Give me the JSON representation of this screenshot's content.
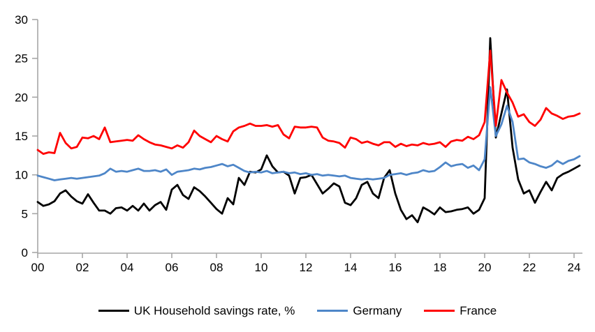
{
  "chart_data": {
    "type": "line",
    "title": "",
    "frequency": "quarterly",
    "x_range": [
      "2000Q1",
      "2024Q2"
    ],
    "x_axis": {
      "tick_labels": [
        "00",
        "02",
        "04",
        "06",
        "08",
        "10",
        "12",
        "14",
        "16",
        "18",
        "20",
        "22",
        "24"
      ],
      "tick_years": [
        2000,
        2002,
        2004,
        2006,
        2008,
        2010,
        2012,
        2014,
        2016,
        2018,
        2020,
        2022,
        2024
      ]
    },
    "y_axis": {
      "ticks": [
        0,
        5,
        10,
        15,
        20,
        25,
        30
      ],
      "range": [
        0,
        30
      ]
    },
    "grid": false,
    "legend_position": "bottom",
    "axis_color": "#A6A6A6",
    "series": [
      {
        "id": "uk",
        "name": "UK Household savings rate, %",
        "color": "#000000",
        "values": [
          6.5,
          6.0,
          6.2,
          6.6,
          7.6,
          8.0,
          7.2,
          6.6,
          6.3,
          7.5,
          6.4,
          5.4,
          5.4,
          5.0,
          5.7,
          5.8,
          5.4,
          6.0,
          5.4,
          6.3,
          5.4,
          6.1,
          6.5,
          5.5,
          8.1,
          8.7,
          7.4,
          6.9,
          8.4,
          7.9,
          7.2,
          6.4,
          5.6,
          5.0,
          7.0,
          6.2,
          9.6,
          8.7,
          10.4,
          10.3,
          10.7,
          12.5,
          11.1,
          10.3,
          10.4,
          9.9,
          7.6,
          9.6,
          9.7,
          10.0,
          8.8,
          7.6,
          8.2,
          8.9,
          8.5,
          6.4,
          6.1,
          7.0,
          8.7,
          9.1,
          7.6,
          7.0,
          9.6,
          10.6,
          7.6,
          5.5,
          4.3,
          4.8,
          3.9,
          5.8,
          5.4,
          4.9,
          5.8,
          5.2,
          5.3,
          5.5,
          5.6,
          5.8,
          5.0,
          5.5,
          7.0,
          27.6,
          14.8,
          17.9,
          21.0,
          13.5,
          9.4,
          7.6,
          8.0,
          6.4,
          7.8,
          9.1,
          8.0,
          9.6,
          10.1,
          10.4,
          10.8,
          11.2
        ]
      },
      {
        "id": "germany",
        "name": "Germany",
        "color": "#4E86C8",
        "values": [
          9.9,
          9.7,
          9.5,
          9.3,
          9.4,
          9.5,
          9.6,
          9.5,
          9.6,
          9.7,
          9.8,
          9.9,
          10.2,
          10.8,
          10.4,
          10.5,
          10.4,
          10.6,
          10.8,
          10.5,
          10.5,
          10.6,
          10.4,
          10.7,
          10.0,
          10.4,
          10.5,
          10.6,
          10.8,
          10.7,
          10.9,
          11.0,
          11.2,
          11.4,
          11.1,
          11.3,
          10.9,
          10.5,
          10.3,
          10.4,
          10.3,
          10.5,
          10.2,
          10.3,
          10.4,
          10.2,
          10.3,
          10.1,
          10.2,
          10.0,
          10.1,
          9.9,
          10.0,
          9.9,
          9.8,
          9.9,
          9.6,
          9.5,
          9.4,
          9.5,
          9.4,
          9.5,
          9.6,
          10.0,
          10.1,
          10.2,
          10.0,
          10.2,
          10.3,
          10.6,
          10.4,
          10.5,
          11.0,
          11.6,
          11.1,
          11.3,
          11.4,
          10.9,
          11.2,
          10.6,
          12.0,
          21.3,
          15.0,
          16.5,
          18.9,
          16.8,
          12.0,
          12.1,
          11.6,
          11.4,
          11.1,
          10.9,
          11.2,
          11.8,
          11.4,
          11.8,
          12.0,
          12.4
        ]
      },
      {
        "id": "france",
        "name": "France",
        "color": "#FF0000",
        "values": [
          13.2,
          12.7,
          12.9,
          12.8,
          15.4,
          14.1,
          13.4,
          13.6,
          14.8,
          14.7,
          15.0,
          14.6,
          16.1,
          14.2,
          14.3,
          14.4,
          14.5,
          14.4,
          15.1,
          14.6,
          14.2,
          13.9,
          13.8,
          13.6,
          13.4,
          13.8,
          13.5,
          14.2,
          15.7,
          15.0,
          14.6,
          14.2,
          15.0,
          14.6,
          14.3,
          15.6,
          16.1,
          16.3,
          16.6,
          16.3,
          16.3,
          16.4,
          16.2,
          16.4,
          15.2,
          14.7,
          16.2,
          16.1,
          16.1,
          16.2,
          16.1,
          14.8,
          14.4,
          14.3,
          14.1,
          13.5,
          14.8,
          14.6,
          14.1,
          14.3,
          14.0,
          13.8,
          14.2,
          14.2,
          13.6,
          14.0,
          13.7,
          13.9,
          13.8,
          14.1,
          13.9,
          14.0,
          14.2,
          13.6,
          14.3,
          14.5,
          14.4,
          14.9,
          14.6,
          15.1,
          16.8,
          26.0,
          16.3,
          22.2,
          20.6,
          19.3,
          17.5,
          17.8,
          16.8,
          16.3,
          17.1,
          18.6,
          17.9,
          17.6,
          17.2,
          17.5,
          17.6,
          17.9
        ]
      }
    ]
  }
}
